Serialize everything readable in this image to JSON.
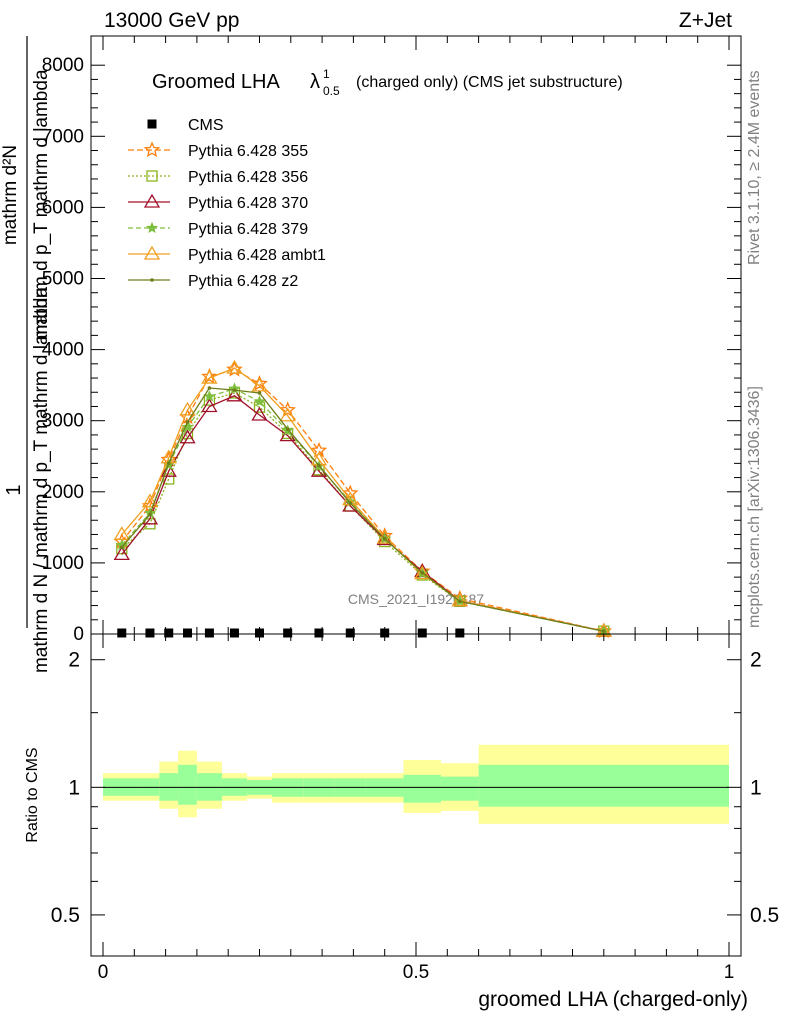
{
  "header": {
    "left": "13000 GeV pp",
    "right": "Z+Jet"
  },
  "side_text": {
    "rivet": "Rivet 3.1.10, ≥ 2.4M events",
    "mcplots": "mcplots.cern.ch [arXiv:1306.3436]"
  },
  "watermark": "CMS_2021_I1920187",
  "chart_data": [
    {
      "type": "line",
      "title": "Groomed LHA",
      "title_symbol": "λ",
      "title_sup": "1",
      "title_sub": "0.5",
      "title_suffix": "(charged only) (CMS jet substructure)",
      "ylabel_numerator": "mathrm d²N",
      "ylabel_numerator2": "mathrm d p_T mathrm d lambda",
      "ylabel_denominator": "mathrm d N / mathrm d p_T mathrm d lambda",
      "ylabel_prefix": "1",
      "xlim": [
        0,
        1
      ],
      "ylim": [
        0,
        8500
      ],
      "yticks": [
        0,
        1000,
        2000,
        3000,
        4000,
        5000,
        6000,
        7000,
        8000
      ],
      "ytick_labels": [
        "0",
        "1000",
        "2000",
        "3000",
        "4000",
        "5000",
        "6000",
        "7000",
        "8000"
      ],
      "legend_position": "top-left",
      "x": [
        0.03,
        0.075,
        0.105,
        0.135,
        0.17,
        0.21,
        0.25,
        0.295,
        0.345,
        0.395,
        0.45,
        0.51,
        0.57,
        0.8
      ],
      "cms": {
        "name": "CMS",
        "color": "#000000",
        "values": [
          0,
          0,
          0,
          0,
          0,
          0,
          0,
          0,
          0,
          0,
          0,
          0,
          0,
          null
        ]
      },
      "series": [
        {
          "name": "Pythia 6.428 355",
          "color": "#ff7f0e",
          "dash": "6,3",
          "marker": "star-open",
          "values": [
            1300,
            1800,
            2450,
            3050,
            3620,
            3720,
            3520,
            3150,
            2580,
            1980,
            1380,
            880,
            500,
            40
          ]
        },
        {
          "name": "Pythia 6.428 356",
          "color": "#8ab41e",
          "dash": "2,2",
          "marker": "square-open",
          "values": [
            1200,
            1550,
            2180,
            2820,
            3290,
            3390,
            3190,
            2820,
            2310,
            1800,
            1300,
            830,
            460,
            40
          ]
        },
        {
          "name": "Pythia 6.428 370",
          "color": "#a0102a",
          "dash": "",
          "marker": "triangle-open",
          "values": [
            1120,
            1620,
            2290,
            2760,
            3200,
            3350,
            3080,
            2790,
            2290,
            1800,
            1330,
            880,
            470,
            40
          ]
        },
        {
          "name": "Pythia 6.428 379",
          "color": "#7fbf3f",
          "dash": "5,3",
          "marker": "star-filled",
          "values": [
            1250,
            1700,
            2380,
            2910,
            3340,
            3450,
            3270,
            2860,
            2360,
            1860,
            1340,
            850,
            460,
            40
          ]
        },
        {
          "name": "Pythia 6.428 ambt1",
          "color": "#f0a020",
          "dash": "",
          "marker": "triangle-open",
          "values": [
            1400,
            1860,
            2480,
            3150,
            3600,
            3740,
            3490,
            3070,
            2450,
            1890,
            1350,
            850,
            470,
            40
          ]
        },
        {
          "name": "Pythia 6.428 z2",
          "color": "#6e7d1a",
          "dash": "",
          "marker": "dot",
          "values": [
            1220,
            1680,
            2400,
            2980,
            3460,
            3430,
            3390,
            2880,
            2370,
            1840,
            1340,
            860,
            460,
            40
          ]
        }
      ]
    },
    {
      "type": "area",
      "ylabel": "Ratio to CMS",
      "xlabel": "groomed LHA (charged-only)",
      "xlim": [
        0,
        1
      ],
      "ylim": [
        0.4,
        2.3
      ],
      "log_scale_y": true,
      "yticks": [
        0.5,
        1,
        2
      ],
      "ytick_labels": [
        "0.5",
        "1",
        "2"
      ],
      "xticks": [
        0,
        0.5,
        1
      ],
      "xtick_labels": [
        "0",
        "0.5",
        "1"
      ],
      "bins": [
        0,
        0.06,
        0.09,
        0.12,
        0.15,
        0.19,
        0.23,
        0.27,
        0.32,
        0.37,
        0.42,
        0.48,
        0.54,
        0.6,
        1.0
      ],
      "band_stat": [
        [
          0.955,
          1.05
        ],
        [
          0.955,
          1.05
        ],
        [
          0.93,
          1.08
        ],
        [
          0.91,
          1.13
        ],
        [
          0.93,
          1.08
        ],
        [
          0.955,
          1.05
        ],
        [
          0.96,
          1.04
        ],
        [
          0.95,
          1.05
        ],
        [
          0.95,
          1.05
        ],
        [
          0.95,
          1.05
        ],
        [
          0.95,
          1.05
        ],
        [
          0.92,
          1.07
        ],
        [
          0.93,
          1.06
        ],
        [
          0.9,
          1.13
        ]
      ],
      "band_total": [
        [
          0.93,
          1.08
        ],
        [
          0.93,
          1.08
        ],
        [
          0.89,
          1.15
        ],
        [
          0.85,
          1.22
        ],
        [
          0.89,
          1.15
        ],
        [
          0.93,
          1.08
        ],
        [
          0.94,
          1.06
        ],
        [
          0.92,
          1.08
        ],
        [
          0.92,
          1.08
        ],
        [
          0.92,
          1.08
        ],
        [
          0.92,
          1.08
        ],
        [
          0.87,
          1.16
        ],
        [
          0.88,
          1.14
        ],
        [
          0.82,
          1.26
        ]
      ],
      "band_colors": {
        "total": "#ffff99",
        "stat": "#99ff99"
      }
    }
  ]
}
